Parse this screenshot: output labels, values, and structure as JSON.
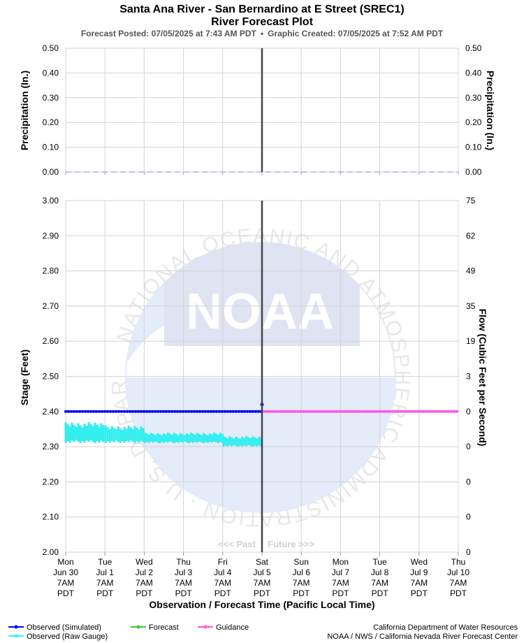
{
  "header": {
    "title": "Santa Ana River - San Bernardino at E Street (SREC1)",
    "subtitle": "River Forecast Plot",
    "posted": "Forecast Posted: 07/05/2025 at 7:43 AM PDT",
    "bullet": "•",
    "created": "Graphic Created: 07/05/2025 at 7:52 AM PDT"
  },
  "labels": {
    "precip_left": "Precipitation (In.)",
    "precip_right": "Precipitation (In.)",
    "stage": "Stage (Feet)",
    "flow": "Flow (Cubic Feet per Second)",
    "xaxis": "Observation / Forecast Time (Pacific Local Time)",
    "past": "<<< Past",
    "future": "Future >>>"
  },
  "watermark": {
    "logo_text": "NOAA",
    "ring_text": "NATIONAL OCEANIC AND ATMOSPHERIC ADMINISTRATION · U.S. DEPARTMENT OF COMMERCE"
  },
  "legend": {
    "items": [
      {
        "label": "Observed (Simulated)",
        "color": "#0000ee"
      },
      {
        "label": "Forecast",
        "color": "#33cc33"
      },
      {
        "label": "Guidance",
        "color": "#ff55ee"
      },
      {
        "label": "Observed (Raw Gauge)",
        "color": "#33eeee"
      }
    ]
  },
  "credits": {
    "line1": "California Department of Water Resources",
    "line2": "NOAA / NWS / California Nevada River Forecast Center"
  },
  "chart_data": [
    {
      "type": "line",
      "panel": "precipitation",
      "ylabel": "Precipitation (In.)",
      "ylim": [
        0,
        0.5
      ],
      "yticks": [
        "0.50",
        "0.40",
        "0.30",
        "0.20",
        "0.10",
        "0.00"
      ],
      "grid": true,
      "series": [
        {
          "values_in": [
            0.0,
            0.0
          ],
          "x_days": [
            0,
            10
          ],
          "style": "dashed",
          "color": "#aab0ee"
        }
      ]
    },
    {
      "type": "line",
      "panel": "stage",
      "xlabel": "Observation / Forecast Time (Pacific Local Time)",
      "ylabel": "Stage (Feet)",
      "y2label": "Flow (Cubic Feet per Second)",
      "ylim": [
        2.0,
        3.0
      ],
      "yticks": [
        "3.00",
        "2.90",
        "2.80",
        "2.70",
        "2.60",
        "2.50",
        "2.40",
        "2.30",
        "2.20",
        "2.10",
        "2.00"
      ],
      "y2ticks": [
        "75",
        "62",
        "49",
        "35",
        "19",
        "3",
        "0",
        "0",
        "0",
        "0",
        "0"
      ],
      "xticks": [
        [
          "Mon",
          "Jun 30",
          "7AM",
          "PDT"
        ],
        [
          "Tue",
          "Jul 1",
          "7AM",
          "PDT"
        ],
        [
          "Wed",
          "Jul 2",
          "7AM",
          "PDT"
        ],
        [
          "Thu",
          "Jul 3",
          "7AM",
          "PDT"
        ],
        [
          "Fri",
          "Jul 4",
          "7AM",
          "PDT"
        ],
        [
          "Sat",
          "Jul 5",
          "7AM",
          "PDT"
        ],
        [
          "Sun",
          "Jul 6",
          "7AM",
          "PDT"
        ],
        [
          "Mon",
          "Jul 7",
          "7AM",
          "PDT"
        ],
        [
          "Tue",
          "Jul 8",
          "7AM",
          "PDT"
        ],
        [
          "Wed",
          "Jul 9",
          "7AM",
          "PDT"
        ],
        [
          "Thu",
          "Jul 10",
          "7AM",
          "PDT"
        ]
      ],
      "now_marker": "Sat Jul 5 7AM PDT",
      "grid": true,
      "series": [
        {
          "name": "Observed (Simulated)",
          "color": "#0000ee",
          "x_day_range": [
            "Mon Jun 30 7AM PDT",
            "Sat Jul 5 7AM PDT"
          ],
          "stage_ft": 2.4,
          "last_point_ft": 2.42
        },
        {
          "name": "Observed (Raw Gauge)",
          "color": "#33eeee",
          "x_day_range": [
            "Mon Jun 30 7AM PDT",
            "Sat Jul 5 7AM PDT"
          ],
          "stage_ft_segments": [
            {
              "from": "Mon Jun 30",
              "to": "Tue Jul 1",
              "min": 2.31,
              "max": 2.37
            },
            {
              "from": "Tue Jul 1",
              "to": "Wed Jul 2",
              "min": 2.31,
              "max": 2.36
            },
            {
              "from": "Wed Jul 2",
              "to": "Fri Jul 4",
              "min": 2.31,
              "max": 2.34
            },
            {
              "from": "Fri Jul 4",
              "to": "Sat Jul 5",
              "min": 2.3,
              "max": 2.33
            }
          ]
        },
        {
          "name": "Guidance",
          "color": "#ff55ee",
          "x_day_range": [
            "Sat Jul 5 7AM PDT",
            "Thu Jul 10 7AM PDT"
          ],
          "stage_ft": 2.4
        }
      ]
    }
  ]
}
